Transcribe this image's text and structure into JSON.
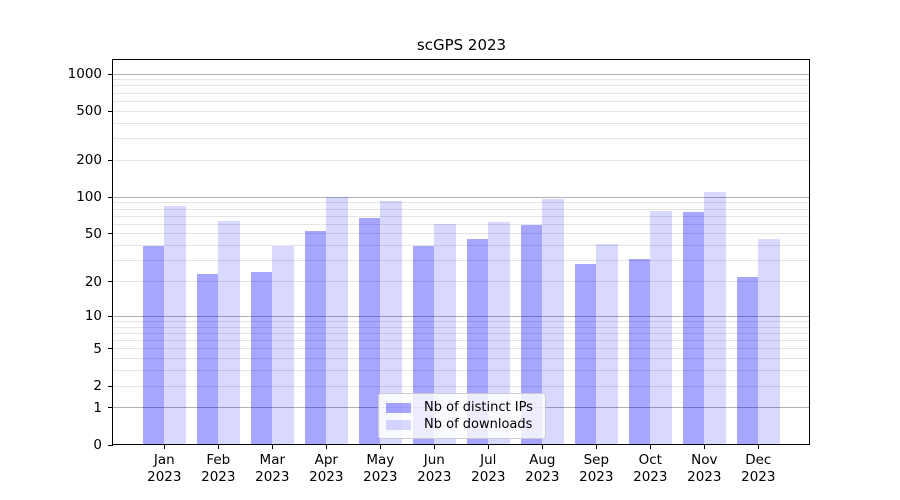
{
  "chart_data": {
    "type": "bar",
    "title": "scGPS 2023",
    "categories": [
      "Jan",
      "Feb",
      "Mar",
      "Apr",
      "May",
      "Jun",
      "Jul",
      "Aug",
      "Sep",
      "Oct",
      "Nov",
      "Dec"
    ],
    "category_year": "2023",
    "series": [
      {
        "name": "Nb of distinct IPs",
        "color": "rgba(0,0,255,0.35)",
        "solid_color": "#a6a6ff",
        "values": [
          40,
          23,
          24,
          53,
          68,
          40,
          45,
          59,
          28,
          31,
          76,
          22
        ]
      },
      {
        "name": "Nb of downloads",
        "color": "rgba(0,0,255,0.15)",
        "solid_color": "#d9d9ff",
        "values": [
          85,
          64,
          40,
          100,
          93,
          60,
          63,
          97,
          41,
          77,
          110,
          45
        ]
      }
    ],
    "yscale": "pseudo-log (log10(1+v))",
    "ylim": [
      0,
      1300
    ],
    "yticks": [
      0,
      1,
      2,
      5,
      10,
      20,
      50,
      100,
      200,
      500,
      1000
    ],
    "ytick_labels": [
      "0",
      "1",
      "2",
      "5",
      "10",
      "20",
      "50",
      "100",
      "200",
      "500",
      "1000"
    ],
    "grid": {
      "major_values": [
        1,
        10,
        100,
        1000
      ],
      "minor_values": [
        2,
        3,
        4,
        5,
        6,
        7,
        8,
        9,
        20,
        30,
        40,
        50,
        60,
        70,
        80,
        90,
        200,
        300,
        400,
        500,
        600,
        700,
        800,
        900
      ],
      "major_color": "#b0b0b0",
      "minor_color": "#e4e4e4"
    },
    "legend": {
      "position": "lower center",
      "entries": [
        "Nb of distinct IPs",
        "Nb of downloads"
      ]
    },
    "xlabel": "",
    "ylabel": ""
  }
}
